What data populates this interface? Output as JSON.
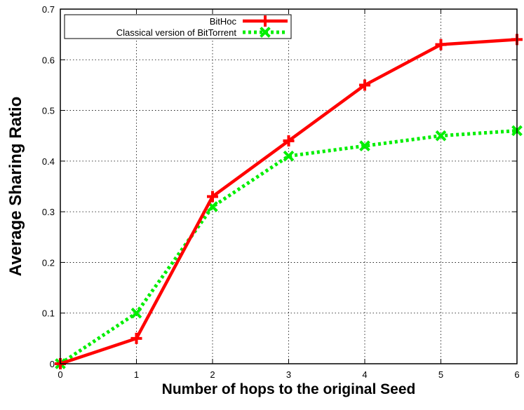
{
  "chart_data": {
    "type": "line",
    "xlabel": "Number of hops to the original Seed",
    "ylabel": "Average Sharing Ratio",
    "x": [
      0,
      1,
      2,
      3,
      4,
      5,
      6
    ],
    "xlim": [
      0,
      6
    ],
    "ylim": [
      0,
      0.7
    ],
    "xticks": [
      "0",
      "1",
      "2",
      "3",
      "4",
      "5",
      "6"
    ],
    "yticks": [
      "0",
      "0.1",
      "0.2",
      "0.3",
      "0.4",
      "0.5",
      "0.6",
      "0.7"
    ],
    "grid": true,
    "legend_position": "top-left",
    "series": [
      {
        "name": "BitHoc",
        "values": [
          0,
          0.05,
          0.33,
          0.44,
          0.55,
          0.63,
          0.64
        ],
        "color": "#ff0000",
        "marker": "plus",
        "line": "solid"
      },
      {
        "name": "Classical version of BitTorrent",
        "values": [
          0,
          0.1,
          0.31,
          0.41,
          0.43,
          0.45,
          0.46
        ],
        "color": "#00ee00",
        "marker": "cross",
        "line": "dotted"
      }
    ]
  }
}
